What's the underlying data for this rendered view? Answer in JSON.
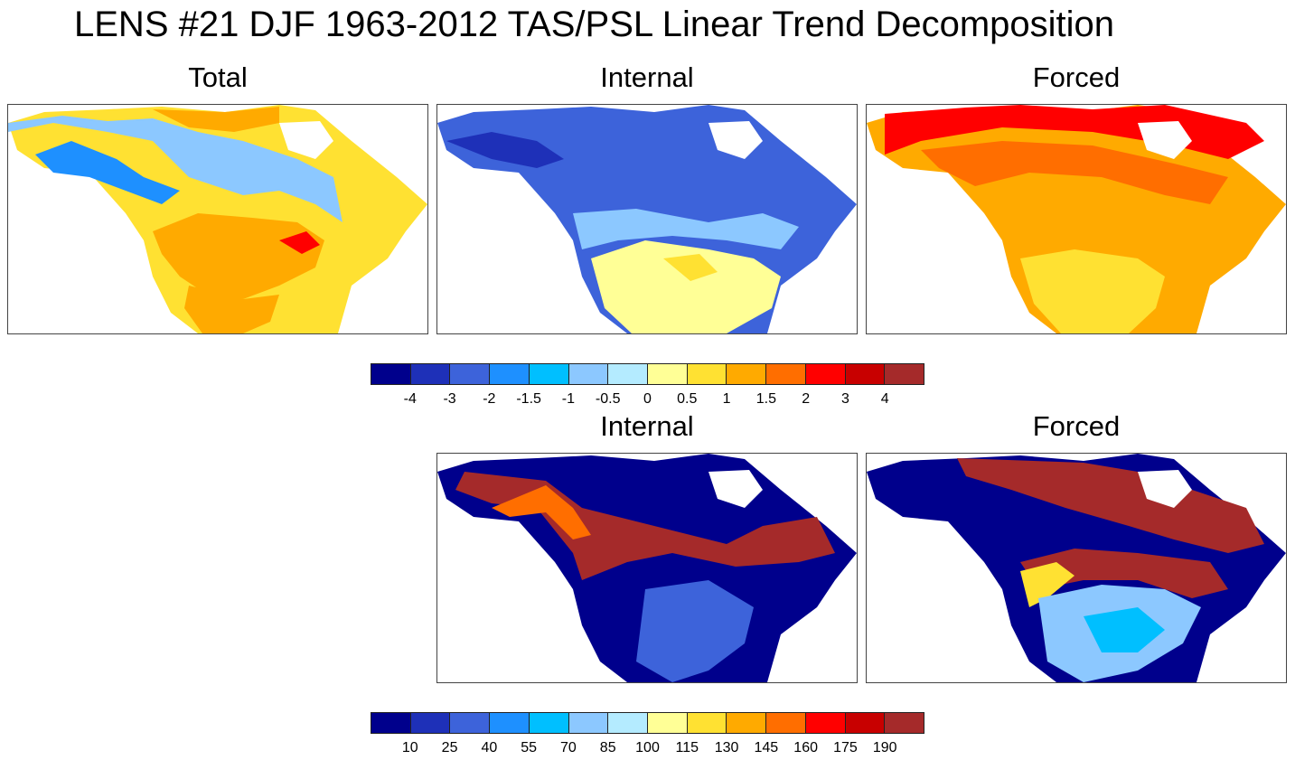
{
  "figure_title": "LENS #21 DJF 1963-2012 TAS/PSL Linear Trend Decomposition",
  "panels": {
    "total": "Total",
    "internal": "Internal",
    "forced": "Forced",
    "internal2": "Internal",
    "forced2": "Forced"
  },
  "colorbar_colors": [
    "#00008C",
    "#1E30B8",
    "#3D63DA",
    "#1E90FF",
    "#00BFFF",
    "#8CC8FF",
    "#B4EBFF",
    "#FFFF96",
    "#FFE132",
    "#FFAA00",
    "#FF6E00",
    "#FF0000",
    "#C80000",
    "#A52A2A"
  ],
  "colorbar1_labels": [
    "-4",
    "-3",
    "-2",
    "-1.5",
    "-1",
    "-0.5",
    "0",
    "0.5",
    "1",
    "1.5",
    "2",
    "3",
    "4"
  ],
  "colorbar2_labels": [
    "10",
    "25",
    "40",
    "55",
    "70",
    "85",
    "100",
    "115",
    "130",
    "145",
    "160",
    "175",
    "190"
  ]
}
